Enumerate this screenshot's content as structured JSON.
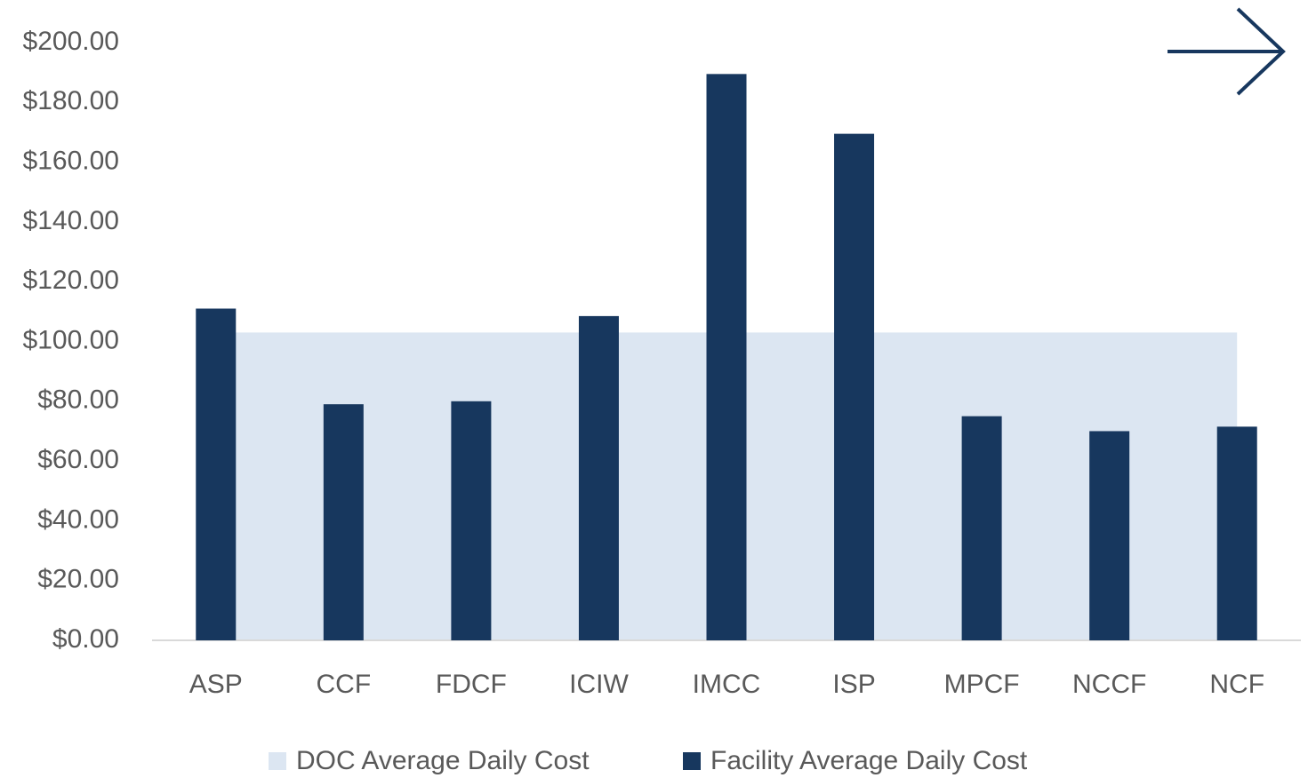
{
  "chart_data": {
    "type": "bar",
    "categories": [
      "ASP",
      "CCF",
      "FDCF",
      "ICIW",
      "IMCC",
      "ISP",
      "MPCF",
      "NCCF",
      "NCF"
    ],
    "series": [
      {
        "name": "DOC Average Daily Cost",
        "type": "area",
        "color": "#dce6f2",
        "values": [
          103,
          103,
          103,
          103,
          103,
          103,
          103,
          103,
          103
        ]
      },
      {
        "name": "Facility Average Daily Cost",
        "type": "bar",
        "color": "#17375e",
        "values": [
          111,
          79,
          80,
          108.5,
          189.5,
          169.5,
          75,
          70,
          71.5
        ]
      }
    ],
    "ylim": [
      0,
      200
    ],
    "yticks": [
      {
        "value": 0,
        "label": "$0.00"
      },
      {
        "value": 20,
        "label": "$20.00"
      },
      {
        "value": 40,
        "label": "$40.00"
      },
      {
        "value": 60,
        "label": "$60.00"
      },
      {
        "value": 80,
        "label": "$80.00"
      },
      {
        "value": 100,
        "label": "$100.00"
      },
      {
        "value": 120,
        "label": "$120.00"
      },
      {
        "value": 140,
        "label": "$140.00"
      },
      {
        "value": 160,
        "label": "$160.00"
      },
      {
        "value": 180,
        "label": "$180.00"
      },
      {
        "value": 200,
        "label": "$200.00"
      }
    ],
    "legend": "bottom"
  }
}
